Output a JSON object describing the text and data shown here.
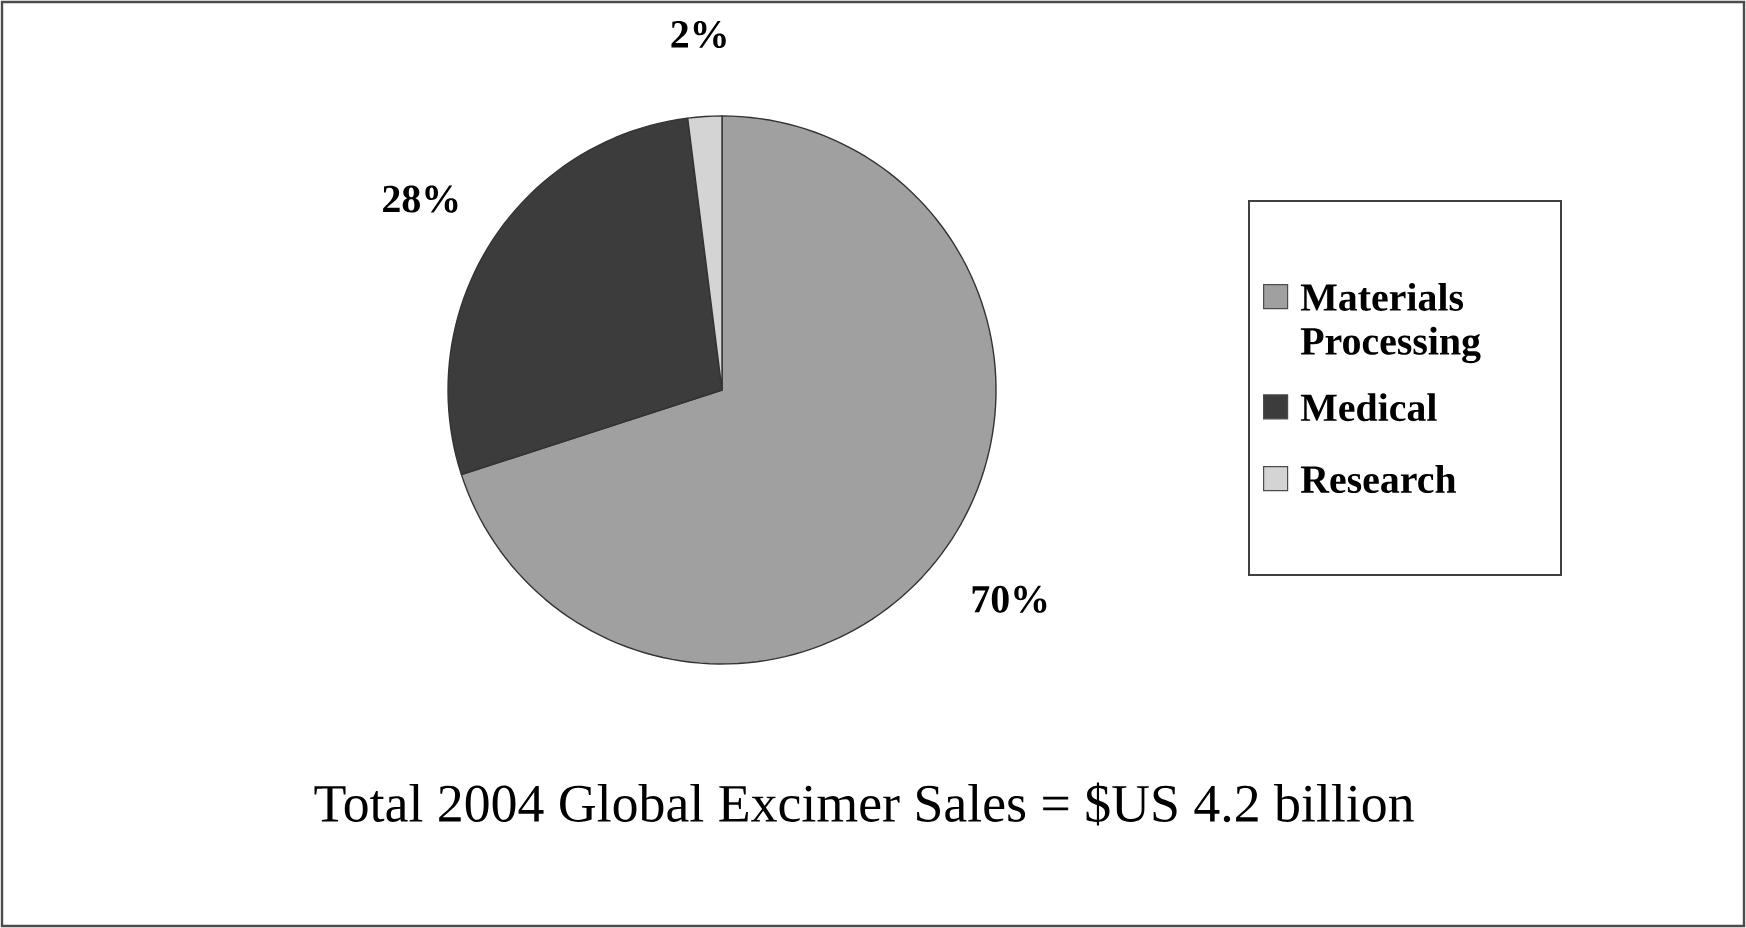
{
  "chart_data": {
    "type": "pie",
    "title": "Total 2004 Global Excimer Sales = $US 4.2 billion",
    "categories": [
      "Materials Processing",
      "Medical",
      "Research"
    ],
    "values": [
      70,
      28,
      2
    ],
    "colors": [
      "#a0a0a0",
      "#3c3c3c",
      "#d4d4d4"
    ],
    "value_labels": [
      "70%",
      "28%",
      "2%"
    ],
    "legend": "right"
  }
}
